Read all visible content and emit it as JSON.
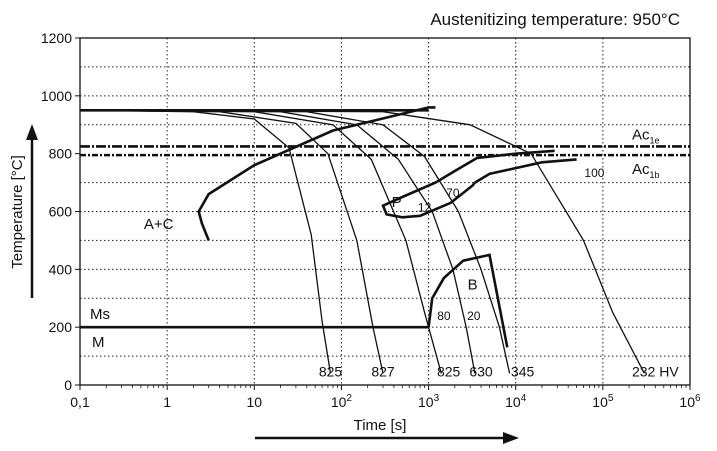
{
  "chart_data": {
    "type": "line",
    "title": "Austenitizing temperature: 950°C",
    "xlabel": "Time [s]",
    "ylabel": "Temperature [°C]",
    "x_scale": "log",
    "xlim": [
      0.1,
      1000000
    ],
    "ylim": [
      0,
      1200
    ],
    "grid": true,
    "x_ticks": [
      {
        "value": 0.1,
        "label": "0,1"
      },
      {
        "value": 1,
        "label": "1"
      },
      {
        "value": 10,
        "label": "10"
      },
      {
        "value": 100,
        "label": "10",
        "exp": "2"
      },
      {
        "value": 1000,
        "label": "10",
        "exp": "3"
      },
      {
        "value": 10000,
        "label": "10",
        "exp": "4"
      },
      {
        "value": 100000,
        "label": "10",
        "exp": "5"
      },
      {
        "value": 1000000,
        "label": "10",
        "exp": "6"
      }
    ],
    "y_ticks": [
      0,
      200,
      400,
      600,
      800,
      1000,
      1200
    ],
    "reference_lines": [
      {
        "name": "Ac",
        "sub": "1e",
        "y": 825
      },
      {
        "name": "Ac",
        "sub": "1b",
        "y": 795
      }
    ],
    "martensite": {
      "Ms_label": "Ms",
      "M_label": "M",
      "y": 200,
      "x_end": 1000
    },
    "cooling_curves": [
      {
        "hardness": "825",
        "points": [
          [
            0.1,
            950
          ],
          [
            2,
            945
          ],
          [
            10,
            920
          ],
          [
            25,
            820
          ],
          [
            45,
            520
          ],
          [
            60,
            220
          ],
          [
            75,
            40
          ]
        ]
      },
      {
        "hardness": "827",
        "points": [
          [
            0.1,
            950
          ],
          [
            4,
            945
          ],
          [
            30,
            905
          ],
          [
            70,
            800
          ],
          [
            150,
            500
          ],
          [
            230,
            200
          ],
          [
            300,
            40
          ]
        ]
      },
      {
        "hardness": "825",
        "points": [
          [
            0.1,
            950
          ],
          [
            10,
            945
          ],
          [
            80,
            900
          ],
          [
            220,
            780
          ],
          [
            550,
            500
          ],
          [
            900,
            250
          ],
          [
            1400,
            40
          ]
        ]
      },
      {
        "hardness": "630",
        "points": [
          [
            0.1,
            950
          ],
          [
            20,
            945
          ],
          [
            150,
            900
          ],
          [
            450,
            780
          ],
          [
            1100,
            600
          ],
          [
            1900,
            400
          ],
          [
            2700,
            200
          ],
          [
            3400,
            40
          ]
        ]
      },
      {
        "hardness": "345",
        "points": [
          [
            0.1,
            950
          ],
          [
            40,
            945
          ],
          [
            300,
            900
          ],
          [
            900,
            790
          ],
          [
            2200,
            600
          ],
          [
            4000,
            400
          ],
          [
            6500,
            200
          ],
          [
            8500,
            40
          ]
        ]
      },
      {
        "hardness": "232 HV",
        "points": [
          [
            0.1,
            950
          ],
          [
            300,
            945
          ],
          [
            3000,
            900
          ],
          [
            15000,
            800
          ],
          [
            60000,
            500
          ],
          [
            130000,
            250
          ],
          [
            300000,
            40
          ]
        ]
      }
    ],
    "curve_labels": [
      {
        "text": "825",
        "x": 75,
        "y": 30
      },
      {
        "text": "827",
        "x": 300,
        "y": 30
      },
      {
        "text": "825",
        "x": 1700,
        "y": 30
      },
      {
        "text": "630",
        "x": 4000,
        "y": 30
      },
      {
        "text": "345",
        "x": 12000,
        "y": 30
      },
      {
        "text": "232 HV",
        "x": 400000,
        "y": 30
      }
    ],
    "transformation_numbers": [
      {
        "text": "12",
        "x": 900,
        "y": 600
      },
      {
        "text": "70",
        "x": 1900,
        "y": 650
      },
      {
        "text": "80",
        "x": 1500,
        "y": 225
      },
      {
        "text": "20",
        "x": 3300,
        "y": 225
      },
      {
        "text": "100",
        "x": 80000,
        "y": 720
      }
    ],
    "regions": [
      {
        "text": "A+C",
        "x": 0.8,
        "y": 540
      },
      {
        "text": "P",
        "x": 430,
        "y": 615
      },
      {
        "text": "B",
        "x": 3200,
        "y": 330
      }
    ],
    "boundaries": {
      "carbide": [
        [
          3,
          500
        ],
        [
          2.5,
          560
        ],
        [
          2.3,
          600
        ],
        [
          3,
          660
        ],
        [
          10,
          760
        ],
        [
          80,
          880
        ],
        [
          1000,
          960
        ],
        [
          1200,
          960
        ]
      ],
      "pearlite_start": [
        [
          28000,
          810
        ],
        [
          10000,
          800
        ],
        [
          3600,
          785
        ],
        [
          2000,
          740
        ],
        [
          1200,
          700
        ],
        [
          500,
          650
        ],
        [
          300,
          620
        ],
        [
          330,
          590
        ],
        [
          500,
          580
        ],
        [
          800,
          585
        ],
        [
          1800,
          630
        ],
        [
          3200,
          690
        ],
        [
          3400,
          700
        ]
      ],
      "pearlite_end": [
        [
          3400,
          700
        ],
        [
          5000,
          730
        ],
        [
          20000,
          770
        ],
        [
          50000,
          780
        ]
      ],
      "top_line": [
        [
          0.1,
          950
        ],
        [
          1000,
          950
        ]
      ],
      "bainite": [
        [
          1000,
          200
        ],
        [
          1100,
          300
        ],
        [
          1500,
          370
        ],
        [
          2500,
          430
        ],
        [
          5000,
          450
        ],
        [
          8000,
          130
        ]
      ]
    }
  }
}
